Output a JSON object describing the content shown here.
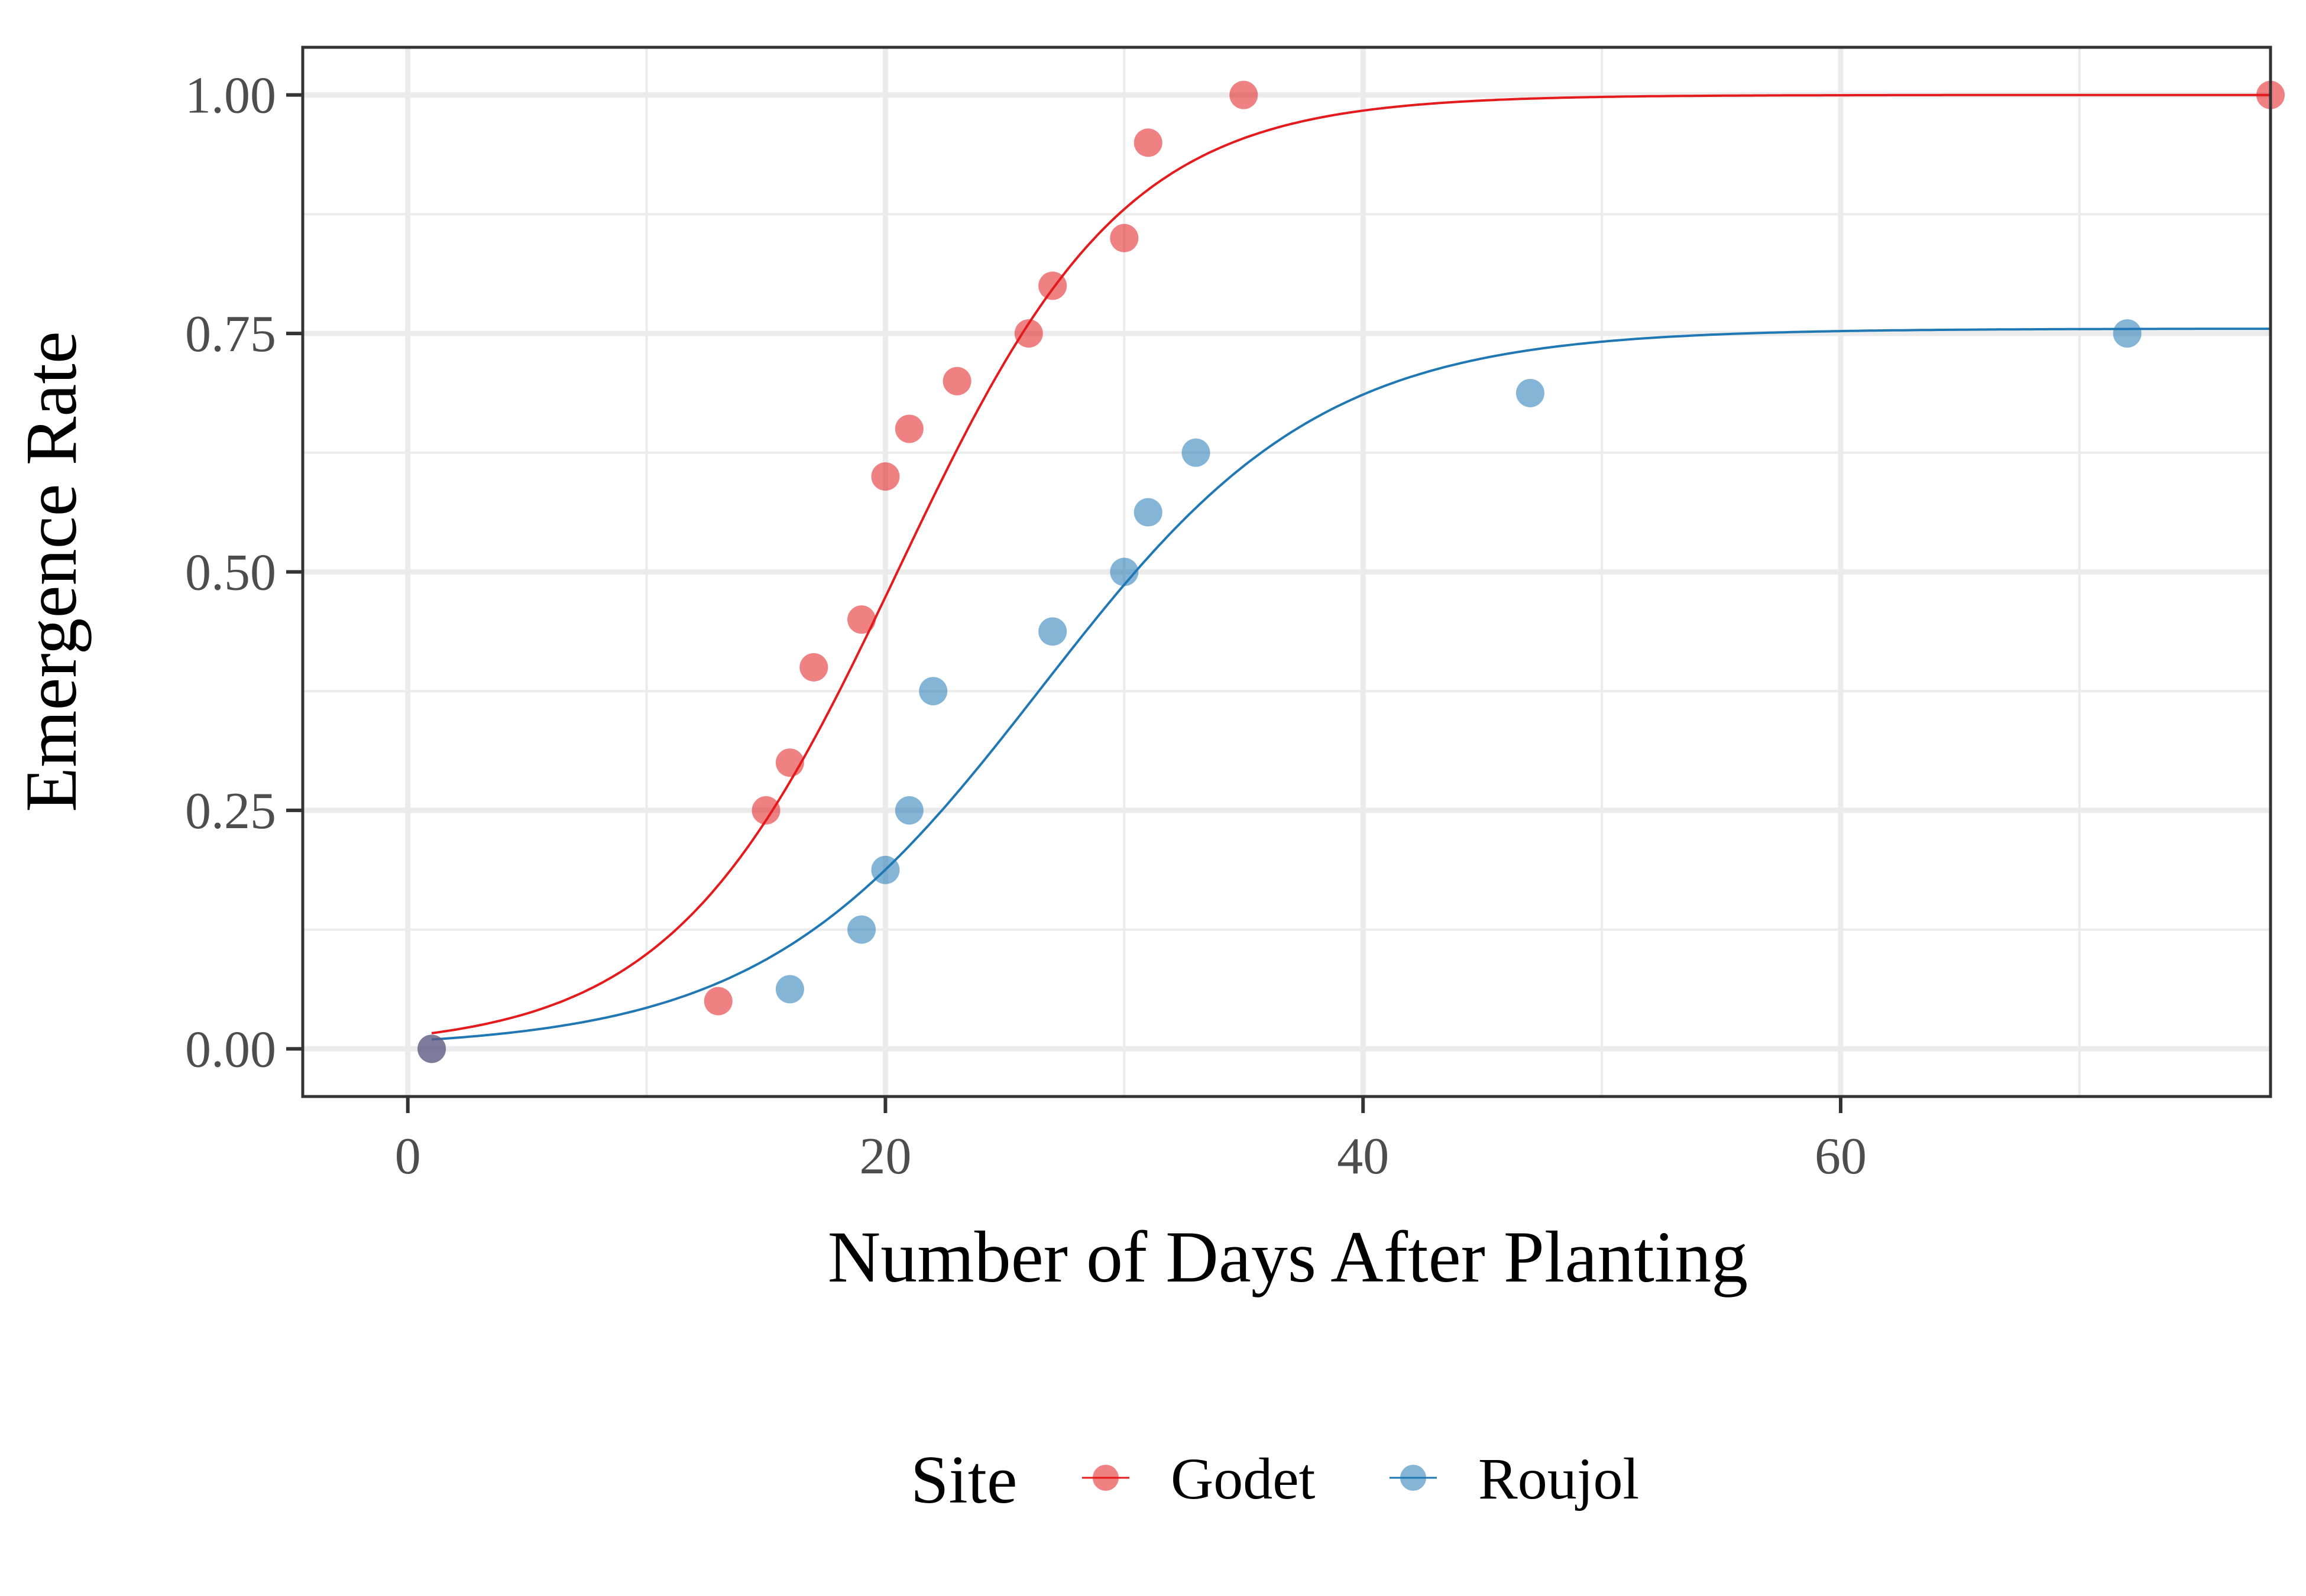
{
  "chart_data": {
    "type": "scatter",
    "title": "",
    "xlabel": "Number of Days After Planting",
    "ylabel": "Emergence Rate",
    "xlim": [
      -4.4,
      78
    ],
    "ylim": [
      -0.05,
      1.05
    ],
    "x_ticks": [
      0,
      20,
      40,
      60
    ],
    "x_tick_labels": [
      "0",
      "20",
      "40",
      "60"
    ],
    "y_ticks": [
      0,
      0.25,
      0.5,
      0.75,
      1.0
    ],
    "y_tick_labels": [
      "0.00",
      "0.25",
      "0.50",
      "0.75",
      "1.00"
    ],
    "grid": true,
    "legend": {
      "title": "Site",
      "placement": "bottom",
      "entries": [
        "Godet",
        "Roujol"
      ]
    },
    "series": [
      {
        "name": "Godet",
        "color": "#E41A1C",
        "points": [
          [
            1,
            0.0
          ],
          [
            13,
            0.05
          ],
          [
            15,
            0.25
          ],
          [
            16,
            0.3
          ],
          [
            17,
            0.4
          ],
          [
            19,
            0.45
          ],
          [
            20,
            0.6
          ],
          [
            21,
            0.65
          ],
          [
            23,
            0.7
          ],
          [
            26,
            0.75
          ],
          [
            27,
            0.8
          ],
          [
            30,
            0.85
          ],
          [
            31,
            0.95
          ],
          [
            35,
            1.0
          ],
          [
            78,
            1.0
          ]
        ],
        "fit": {
          "model": "logistic",
          "asymptote": 1.0,
          "midpoint": 20.5,
          "slope": 0.21
        }
      },
      {
        "name": "Roujol",
        "color": "#1F78B4",
        "points": [
          [
            1,
            0.0
          ],
          [
            16,
            0.0625
          ],
          [
            19,
            0.125
          ],
          [
            20,
            0.1875
          ],
          [
            21,
            0.25
          ],
          [
            22,
            0.375
          ],
          [
            27,
            0.4375
          ],
          [
            30,
            0.5
          ],
          [
            31,
            0.5625
          ],
          [
            33,
            0.625
          ],
          [
            47,
            0.6875
          ],
          [
            72,
            0.75
          ]
        ],
        "fit": {
          "model": "logistic",
          "asymptote": 0.755,
          "midpoint": 26.5,
          "slope": 0.17
        }
      }
    ]
  }
}
